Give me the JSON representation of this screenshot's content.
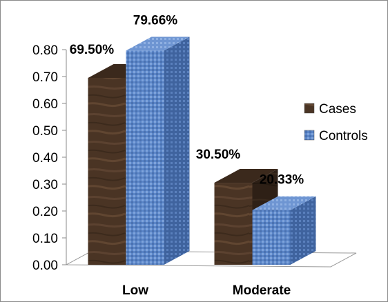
{
  "chart_data": {
    "type": "bar",
    "categories": [
      "Low",
      "Moderate"
    ],
    "series": [
      {
        "name": "Cases",
        "values": [
          0.695,
          0.305
        ],
        "labels": [
          "69.50%",
          "30.50%"
        ],
        "color": "#4a3424"
      },
      {
        "name": "Controls",
        "values": [
          0.7966,
          0.2033
        ],
        "labels": [
          "79.66%",
          "20.33%"
        ],
        "color": "#5b86c8"
      }
    ],
    "yticks": [
      "0.00",
      "0.10",
      "0.20",
      "0.30",
      "0.40",
      "0.50",
      "0.60",
      "0.70",
      "0.80"
    ],
    "ylim": [
      0,
      0.8
    ],
    "grid": false,
    "legend_position": "right",
    "style": "3d-column"
  }
}
